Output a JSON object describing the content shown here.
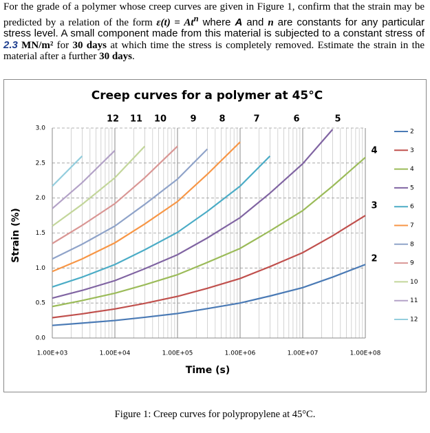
{
  "problem": {
    "parts": [
      "For the grade of a polymer whose creep curves are given in Figure 1, confirm that the strain may be predicted by a relation of the form ",
      "ε(t) = At",
      "n",
      " where ",
      "A",
      " and ",
      "n",
      " are constants for any particular stress level. A small component made from this material is subjected to a constant stress of ",
      "2.3",
      " MN/m²",
      " for ",
      "30 days",
      " at which time the stress is completely removed. Estimate the strain in the material after a further ",
      "30 days",
      "."
    ]
  },
  "caption": "Figure 1:  Creep curves for polypropylene at 45°C.",
  "chart_data": {
    "type": "line",
    "title": "Creep curves for a polymer at 45°C",
    "x_label": "Time (s)",
    "y_label": "Strain (%)",
    "log_x": true,
    "grid": true,
    "legend": "right",
    "xlim": [
      1000,
      100000000
    ],
    "xticks": [
      {
        "value": 1000,
        "label": "1.00E+03"
      },
      {
        "value": 10000,
        "label": "1.00E+04"
      },
      {
        "value": 100000,
        "label": "1.00E+05"
      },
      {
        "value": 1000000,
        "label": "1.00E+06"
      },
      {
        "value": 10000000,
        "label": "1.00E+07"
      },
      {
        "value": 100000000,
        "label": "1.00E+08"
      }
    ],
    "ylim": [
      0,
      3
    ],
    "yticks": [
      {
        "value": 0,
        "label": "0.0"
      },
      {
        "value": 0.5,
        "label": "0.5"
      },
      {
        "value": 1,
        "label": "1.0"
      },
      {
        "value": 1.5,
        "label": "1.5"
      },
      {
        "value": 2,
        "label": "2.0"
      },
      {
        "value": 2.5,
        "label": "2.5"
      },
      {
        "value": 3,
        "label": "3.0"
      }
    ],
    "x": [
      1000,
      3000,
      10000,
      30000,
      100000,
      300000,
      1000000,
      3000000,
      10000000,
      30000000,
      100000000
    ],
    "series": [
      {
        "name": "2",
        "color": "#4a7ab5",
        "values": [
          0.18,
          0.213,
          0.25,
          0.296,
          0.35,
          0.42,
          0.5,
          0.6,
          0.72,
          0.87,
          1.05
        ]
      },
      {
        "name": "3",
        "color": "#c0504d",
        "values": [
          0.29,
          0.345,
          0.415,
          0.495,
          0.595,
          0.71,
          0.85,
          1.02,
          1.22,
          1.46,
          1.75
        ]
      },
      {
        "name": "4",
        "color": "#9bbb59",
        "values": [
          0.45,
          0.535,
          0.64,
          0.76,
          0.905,
          1.08,
          1.28,
          1.53,
          1.82,
          2.17,
          2.58
        ]
      },
      {
        "name": "5",
        "color": "#8064a2",
        "values": [
          0.57,
          0.68,
          0.82,
          0.99,
          1.19,
          1.43,
          1.72,
          2.07,
          2.49,
          2.98,
          null
        ]
      },
      {
        "name": "6",
        "color": "#4bacc6",
        "values": [
          0.73,
          0.87,
          1.05,
          1.26,
          1.51,
          1.81,
          2.17,
          2.6,
          null,
          null,
          null
        ]
      },
      {
        "name": "7",
        "color": "#f79646",
        "values": [
          0.95,
          1.13,
          1.36,
          1.63,
          1.95,
          2.34,
          2.8,
          null,
          null,
          null,
          null
        ]
      },
      {
        "name": "8",
        "color": "#8fa3c9",
        "values": [
          1.13,
          1.34,
          1.6,
          1.91,
          2.27,
          2.7,
          null,
          null,
          null,
          null,
          null
        ]
      },
      {
        "name": "9",
        "color": "#d99694",
        "values": [
          1.35,
          1.61,
          1.92,
          2.29,
          2.74,
          null,
          null,
          null,
          null,
          null,
          null
        ]
      },
      {
        "name": "10",
        "color": "#c3d69b",
        "values": [
          1.6,
          1.91,
          2.29,
          2.74,
          null,
          null,
          null,
          null,
          null,
          null,
          null
        ]
      },
      {
        "name": "11",
        "color": "#b3a2c7",
        "values": [
          1.85,
          2.22,
          2.68,
          null,
          null,
          null,
          null,
          null,
          null,
          null,
          null
        ]
      },
      {
        "name": "12",
        "color": "#93cddd",
        "values": [
          2.17,
          2.6,
          null,
          null,
          null,
          null,
          null,
          null,
          null,
          null,
          null
        ]
      }
    ],
    "top_curve_labels": [
      "12",
      "11",
      "10",
      "9",
      "8",
      "7",
      "6",
      "5"
    ],
    "side_curve_labels": [
      "4",
      "3",
      "2"
    ]
  }
}
